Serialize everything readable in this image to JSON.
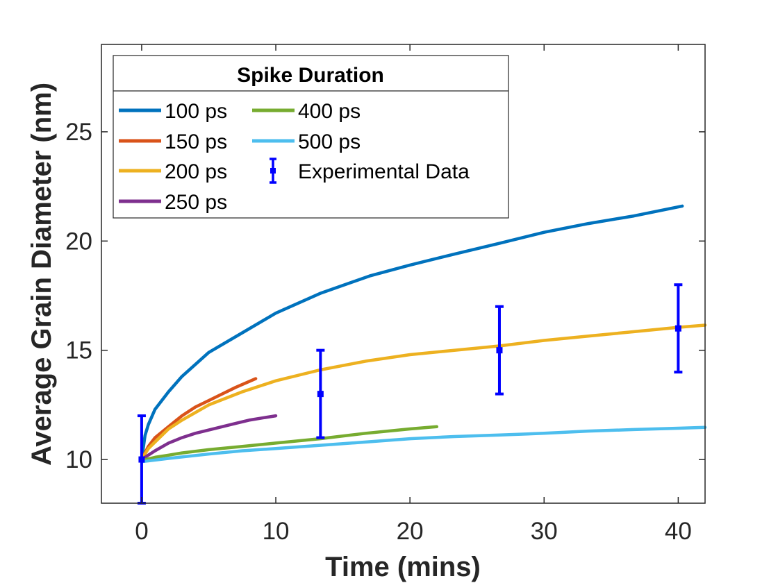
{
  "chart_data": {
    "type": "line",
    "xlabel": "Time (mins)",
    "ylabel": "Average Grain Diameter (nm)",
    "xlim": [
      -3,
      42
    ],
    "ylim": [
      8,
      29
    ],
    "xticks": [
      0,
      10,
      20,
      30,
      40
    ],
    "yticks": [
      10,
      15,
      20,
      25
    ],
    "grid": false,
    "legend": {
      "title": "Spike Duration",
      "placement": "top-left",
      "entries": [
        "100 ps",
        "150 ps",
        "200 ps",
        "250 ps",
        "400 ps",
        "500 ps",
        "Experimental Data"
      ]
    },
    "series": [
      {
        "name": "100 ps",
        "color": "#0072BD",
        "x": [
          0,
          0.25,
          0.5,
          1,
          2,
          3,
          5,
          7.5,
          10,
          13.3,
          17,
          20,
          23.3,
          26.7,
          30,
          33.3,
          36.7,
          40.3
        ],
        "y": [
          10,
          11.1,
          11.6,
          12.3,
          13.1,
          13.8,
          14.9,
          15.8,
          16.7,
          17.6,
          18.4,
          18.9,
          19.4,
          19.9,
          20.4,
          20.8,
          21.15,
          21.6
        ]
      },
      {
        "name": "150 ps",
        "color": "#D95319",
        "x": [
          0,
          0.5,
          1,
          2,
          3,
          4,
          5,
          6,
          7,
          8.5
        ],
        "y": [
          10,
          10.6,
          11,
          11.5,
          12,
          12.4,
          12.7,
          13,
          13.3,
          13.7
        ]
      },
      {
        "name": "200 ps",
        "color": "#EDB120",
        "x": [
          0,
          0.5,
          1,
          2,
          3,
          5,
          7.5,
          10,
          13.3,
          16.7,
          20,
          23.3,
          26.7,
          30,
          33.3,
          36.7,
          40,
          42
        ],
        "y": [
          10,
          10.5,
          10.8,
          11.4,
          11.8,
          12.5,
          13.1,
          13.6,
          14.1,
          14.5,
          14.8,
          15.0,
          15.2,
          15.45,
          15.65,
          15.85,
          16.05,
          16.15
        ]
      },
      {
        "name": "250 ps",
        "color": "#7E2F8E",
        "x": [
          0,
          1,
          2,
          3,
          4,
          5,
          6,
          7,
          8,
          9,
          10
        ],
        "y": [
          10,
          10.4,
          10.75,
          11.0,
          11.2,
          11.35,
          11.5,
          11.65,
          11.8,
          11.9,
          12
        ]
      },
      {
        "name": "400 ps",
        "color": "#77AC30",
        "x": [
          0,
          1,
          2,
          3,
          5,
          7.5,
          10,
          13.3,
          16.7,
          20,
          22
        ],
        "y": [
          9.95,
          10.1,
          10.2,
          10.3,
          10.45,
          10.6,
          10.75,
          10.95,
          11.2,
          11.4,
          11.5
        ]
      },
      {
        "name": "500 ps",
        "color": "#4DBEEE",
        "x": [
          0,
          2,
          5,
          7.5,
          10,
          13.3,
          16.7,
          20,
          23.3,
          26.7,
          30,
          33.3,
          36.7,
          40,
          42
        ],
        "y": [
          9.9,
          10.05,
          10.25,
          10.4,
          10.5,
          10.65,
          10.8,
          10.95,
          11.05,
          11.12,
          11.2,
          11.3,
          11.37,
          11.43,
          11.47
        ]
      }
    ],
    "errorbar": {
      "name": "Experimental Data",
      "color": "#0000FF",
      "x": [
        0,
        13.33,
        26.67,
        40
      ],
      "y": [
        10,
        13,
        15,
        16
      ],
      "error": [
        2,
        2,
        2,
        2
      ]
    }
  }
}
